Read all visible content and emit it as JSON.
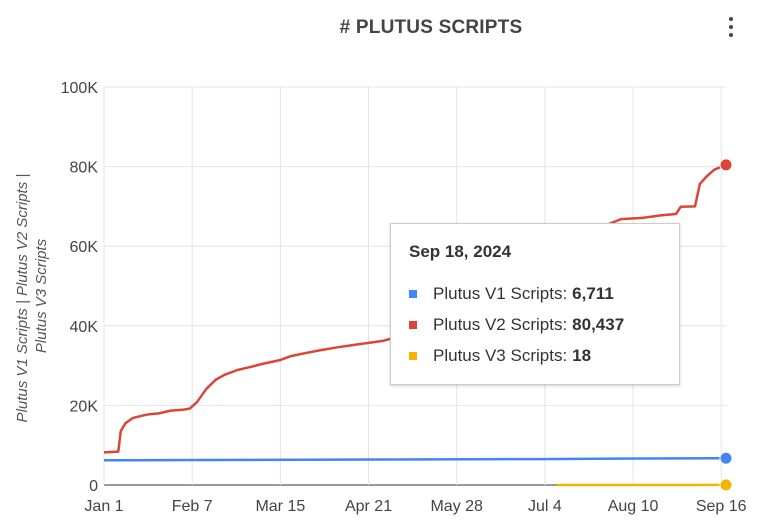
{
  "header": {
    "title": "# PLUTUS SCRIPTS",
    "menu_icon": "more-vert-icon"
  },
  "chart_data": {
    "type": "line",
    "title": "# PLUTUS SCRIPTS",
    "xlabel": "",
    "ylabel": "Plutus V1 Scripts | Plutus V2 Scripts | Plutus V3 Scripts",
    "xlim": [
      "2024-01-01",
      "2024-09-18"
    ],
    "ylim": [
      0,
      100000
    ],
    "y_ticks": [
      0,
      20000,
      40000,
      60000,
      80000,
      100000
    ],
    "y_tick_labels": [
      "0",
      "20K",
      "40K",
      "60K",
      "80K",
      "100K"
    ],
    "x_ticks": [
      "2024-01-01",
      "2024-02-07",
      "2024-03-15",
      "2024-04-21",
      "2024-05-28",
      "2024-07-04",
      "2024-08-10",
      "2024-09-16"
    ],
    "x_tick_labels": [
      "Jan 1",
      "Feb 7",
      "Mar 15",
      "Apr 21",
      "May 28",
      "Jul 4",
      "Aug 10",
      "Sep 16"
    ],
    "grid": true,
    "series": [
      {
        "name": "Plutus V1 Scripts",
        "color": "#4285f4",
        "points": [
          [
            "2024-01-01",
            6200
          ],
          [
            "2024-03-01",
            6300
          ],
          [
            "2024-05-01",
            6400
          ],
          [
            "2024-07-01",
            6500
          ],
          [
            "2024-08-15",
            6650
          ],
          [
            "2024-09-18",
            6711
          ]
        ]
      },
      {
        "name": "Plutus V2 Scripts",
        "color": "#db4437",
        "points": [
          [
            "2024-01-01",
            8200
          ],
          [
            "2024-01-07",
            8400
          ],
          [
            "2024-01-08",
            13500
          ],
          [
            "2024-01-10",
            15500
          ],
          [
            "2024-01-13",
            16800
          ],
          [
            "2024-01-17",
            17400
          ],
          [
            "2024-01-20",
            17800
          ],
          [
            "2024-01-24",
            18000
          ],
          [
            "2024-01-29",
            18700
          ],
          [
            "2024-02-03",
            18900
          ],
          [
            "2024-02-06",
            19200
          ],
          [
            "2024-02-09",
            20800
          ],
          [
            "2024-02-13",
            24200
          ],
          [
            "2024-02-17",
            26500
          ],
          [
            "2024-02-21",
            27800
          ],
          [
            "2024-02-26",
            28900
          ],
          [
            "2024-03-02",
            29600
          ],
          [
            "2024-03-08",
            30500
          ],
          [
            "2024-03-15",
            31400
          ],
          [
            "2024-03-19",
            32300
          ],
          [
            "2024-03-25",
            33100
          ],
          [
            "2024-04-01",
            33900
          ],
          [
            "2024-04-08",
            34600
          ],
          [
            "2024-04-15",
            35200
          ],
          [
            "2024-04-21",
            35700
          ],
          [
            "2024-04-27",
            36200
          ],
          [
            "2024-05-03",
            37200
          ],
          [
            "2024-05-06",
            37600
          ],
          [
            "2024-07-18",
            61000
          ],
          [
            "2024-07-31",
            65600
          ],
          [
            "2024-08-05",
            66800
          ],
          [
            "2024-08-14",
            67100
          ],
          [
            "2024-08-22",
            67800
          ],
          [
            "2024-08-28",
            68100
          ],
          [
            "2024-08-30",
            69900
          ],
          [
            "2024-09-05",
            70000
          ],
          [
            "2024-09-07",
            75600
          ],
          [
            "2024-09-10",
            77600
          ],
          [
            "2024-09-13",
            79200
          ],
          [
            "2024-09-18",
            80437
          ]
        ]
      },
      {
        "name": "Plutus V3 Scripts",
        "color": "#f4b400",
        "points": [
          [
            "2024-07-09",
            0
          ],
          [
            "2024-09-01",
            10
          ],
          [
            "2024-09-18",
            18
          ]
        ]
      }
    ]
  },
  "tooltip": {
    "date": "Sep 18, 2024",
    "rows": [
      {
        "label": "Plutus V1 Scripts:",
        "value": "6,711",
        "color": "#4285f4"
      },
      {
        "label": "Plutus V2 Scripts:",
        "value": "80,437",
        "color": "#db4437"
      },
      {
        "label": "Plutus V3 Scripts:",
        "value": "18",
        "color": "#f4b400"
      }
    ]
  }
}
